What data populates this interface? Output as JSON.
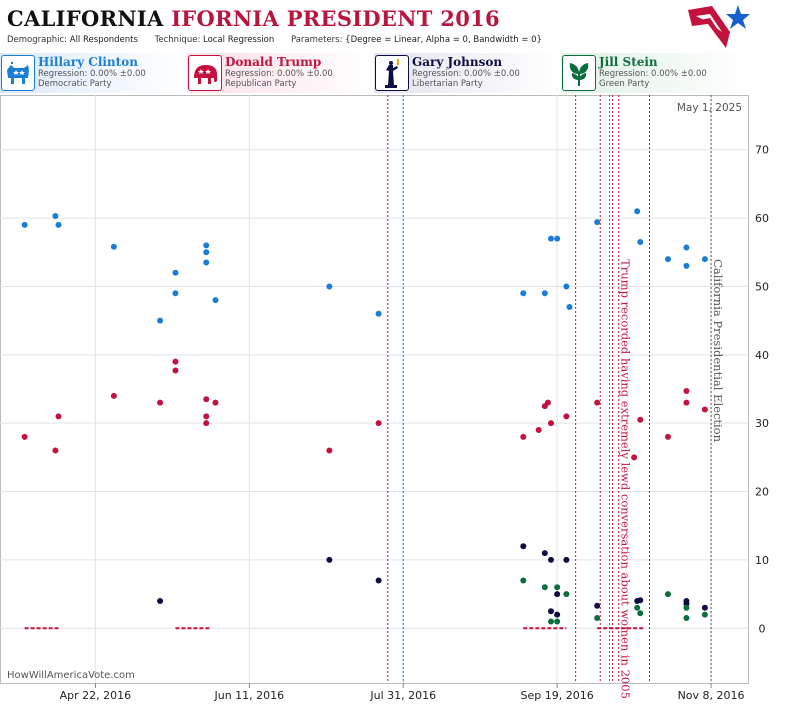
{
  "header": {
    "title_part1": "CALIFORNIA",
    "title_part2": "IFORNIA PRESIDENT 2016",
    "demographic_label": "Demographic:",
    "demographic_value": "All Respondents",
    "technique_label": "Technique:",
    "technique_value": "Local Regression",
    "parameters_label": "Parameters:",
    "parameters_value": "{Degree = Linear, Alpha = 0, Bandwidth = 0}"
  },
  "candidates": [
    {
      "name": "Hillary Clinton",
      "regression": "Regression: 0.00% ±0.00",
      "party": "Democratic Party",
      "color": "#1a7ed6",
      "bg": "#e9f2fb",
      "icon": "donkey-icon"
    },
    {
      "name": "Donald Trump",
      "regression": "Regression: 0.00% ±0.00",
      "party": "Republican Party",
      "color": "#c4123f",
      "bg": "#fbe9ee",
      "icon": "elephant-icon"
    },
    {
      "name": "Gary Johnson",
      "regression": "Regression: 0.00% ±0.00",
      "party": "Libertarian Party",
      "color": "#0e0e44",
      "bg": "#ececf3",
      "icon": "liberty-statue-icon"
    },
    {
      "name": "Jill Stein",
      "regression": "Regression: 0.00% ±0.00",
      "party": "Green Party",
      "color": "#0b6e3c",
      "bg": "#e8f3ec",
      "icon": "leaf-icon"
    }
  ],
  "chart_data": {
    "type": "scatter",
    "date_stamp": "May 1, 2025",
    "watermark": "HowWillAmericaVote.com",
    "x_ticks": [
      "Apr 22, 2016",
      "Jun 11, 2016",
      "Jul 31, 2016",
      "Sep 19, 2016",
      "Nov 8, 2016"
    ],
    "y_ticks": [
      0,
      10,
      20,
      30,
      40,
      50,
      60,
      70
    ],
    "ylim": [
      -8,
      78
    ],
    "xlim": [
      "2016-03-22",
      "2016-11-20"
    ],
    "grid": true,
    "series": [
      {
        "name": "Hillary Clinton",
        "color": "#1a7ed6",
        "points": [
          [
            "2016-03-30",
            59
          ],
          [
            "2016-04-09",
            60.3
          ],
          [
            "2016-04-10",
            59
          ],
          [
            "2016-04-28",
            55.8
          ],
          [
            "2016-05-13",
            45
          ],
          [
            "2016-05-18",
            52
          ],
          [
            "2016-05-18",
            49
          ],
          [
            "2016-05-28",
            56
          ],
          [
            "2016-05-28",
            55
          ],
          [
            "2016-05-28",
            53.5
          ],
          [
            "2016-05-31",
            48
          ],
          [
            "2016-07-07",
            50
          ],
          [
            "2016-07-23",
            46
          ],
          [
            "2016-09-08",
            49
          ],
          [
            "2016-09-15",
            49
          ],
          [
            "2016-09-17",
            57
          ],
          [
            "2016-09-19",
            57
          ],
          [
            "2016-09-22",
            50
          ],
          [
            "2016-09-23",
            47
          ],
          [
            "2016-10-02",
            59.4
          ],
          [
            "2016-10-15",
            61
          ],
          [
            "2016-10-16",
            56.5
          ],
          [
            "2016-10-25",
            54
          ],
          [
            "2016-10-31",
            55.7
          ],
          [
            "2016-10-31",
            53
          ],
          [
            "2016-11-06",
            54
          ]
        ]
      },
      {
        "name": "Donald Trump",
        "color": "#c4123f",
        "points": [
          [
            "2016-03-30",
            28
          ],
          [
            "2016-04-09",
            26
          ],
          [
            "2016-04-10",
            31
          ],
          [
            "2016-04-28",
            34
          ],
          [
            "2016-05-13",
            33
          ],
          [
            "2016-05-18",
            39
          ],
          [
            "2016-05-18",
            37.7
          ],
          [
            "2016-05-28",
            33.5
          ],
          [
            "2016-05-28",
            31
          ],
          [
            "2016-05-28",
            30
          ],
          [
            "2016-05-31",
            33
          ],
          [
            "2016-07-07",
            26
          ],
          [
            "2016-07-23",
            30
          ],
          [
            "2016-09-08",
            28
          ],
          [
            "2016-09-13",
            29
          ],
          [
            "2016-09-15",
            32.5
          ],
          [
            "2016-09-16",
            33
          ],
          [
            "2016-09-17",
            30
          ],
          [
            "2016-09-22",
            31
          ],
          [
            "2016-10-02",
            33
          ],
          [
            "2016-10-14",
            25
          ],
          [
            "2016-10-16",
            30.5
          ],
          [
            "2016-10-25",
            28
          ],
          [
            "2016-10-31",
            34.7
          ],
          [
            "2016-10-31",
            33
          ],
          [
            "2016-11-06",
            32
          ]
        ]
      },
      {
        "name": "Gary Johnson",
        "color": "#0e0e44",
        "points": [
          [
            "2016-05-13",
            4
          ],
          [
            "2016-07-07",
            10
          ],
          [
            "2016-07-23",
            7
          ],
          [
            "2016-09-08",
            12
          ],
          [
            "2016-09-15",
            11
          ],
          [
            "2016-09-17",
            10
          ],
          [
            "2016-09-17",
            2.5
          ],
          [
            "2016-09-19",
            5
          ],
          [
            "2016-09-19",
            2
          ],
          [
            "2016-09-22",
            10
          ],
          [
            "2016-10-02",
            3.3
          ],
          [
            "2016-10-15",
            4
          ],
          [
            "2016-10-16",
            4.1
          ],
          [
            "2016-10-31",
            4
          ],
          [
            "2016-10-31",
            3.6
          ],
          [
            "2016-11-06",
            3
          ]
        ]
      },
      {
        "name": "Jill Stein",
        "color": "#0b6e3c",
        "points": [
          [
            "2016-09-08",
            7
          ],
          [
            "2016-09-15",
            6
          ],
          [
            "2016-09-17",
            1
          ],
          [
            "2016-09-19",
            6
          ],
          [
            "2016-09-19",
            1
          ],
          [
            "2016-09-22",
            5
          ],
          [
            "2016-10-02",
            1.5
          ],
          [
            "2016-10-15",
            3
          ],
          [
            "2016-10-16",
            2.2
          ],
          [
            "2016-10-25",
            5
          ],
          [
            "2016-10-31",
            3
          ],
          [
            "2016-10-31",
            1.5
          ],
          [
            "2016-11-06",
            2
          ]
        ]
      }
    ],
    "zero_bars": [
      {
        "from": "2016-03-30",
        "to": "2016-04-10",
        "color": "#c4123f"
      },
      {
        "from": "2016-05-18",
        "to": "2016-05-29",
        "color": "#c4123f"
      },
      {
        "from": "2016-09-08",
        "to": "2016-09-22",
        "color": "#c4123f"
      },
      {
        "from": "2016-10-02",
        "to": "2016-10-17",
        "color": "#c4123f"
      }
    ],
    "events": [
      {
        "date": "2016-07-26",
        "color": "#c4123f",
        "label": ""
      },
      {
        "date": "2016-07-31",
        "color": "#1a7ed6",
        "label": ""
      },
      {
        "date": "2016-09-25",
        "color": "#c4123f",
        "label": ""
      },
      {
        "date": "2016-10-03",
        "color": "#c4123f",
        "label": ""
      },
      {
        "date": "2016-10-06",
        "color": "#1a7ed6",
        "label": ""
      },
      {
        "date": "2016-10-07",
        "color": "#c4123f",
        "label": ""
      },
      {
        "date": "2016-10-09",
        "color": "#c4123f",
        "label": "Trump recorded having extremely lewd conversation about women in 2005"
      },
      {
        "date": "2016-10-19",
        "color": "#c4123f",
        "label": ""
      },
      {
        "date": "2016-11-08",
        "color": "#555555",
        "label": "California Presidential Election"
      }
    ]
  }
}
